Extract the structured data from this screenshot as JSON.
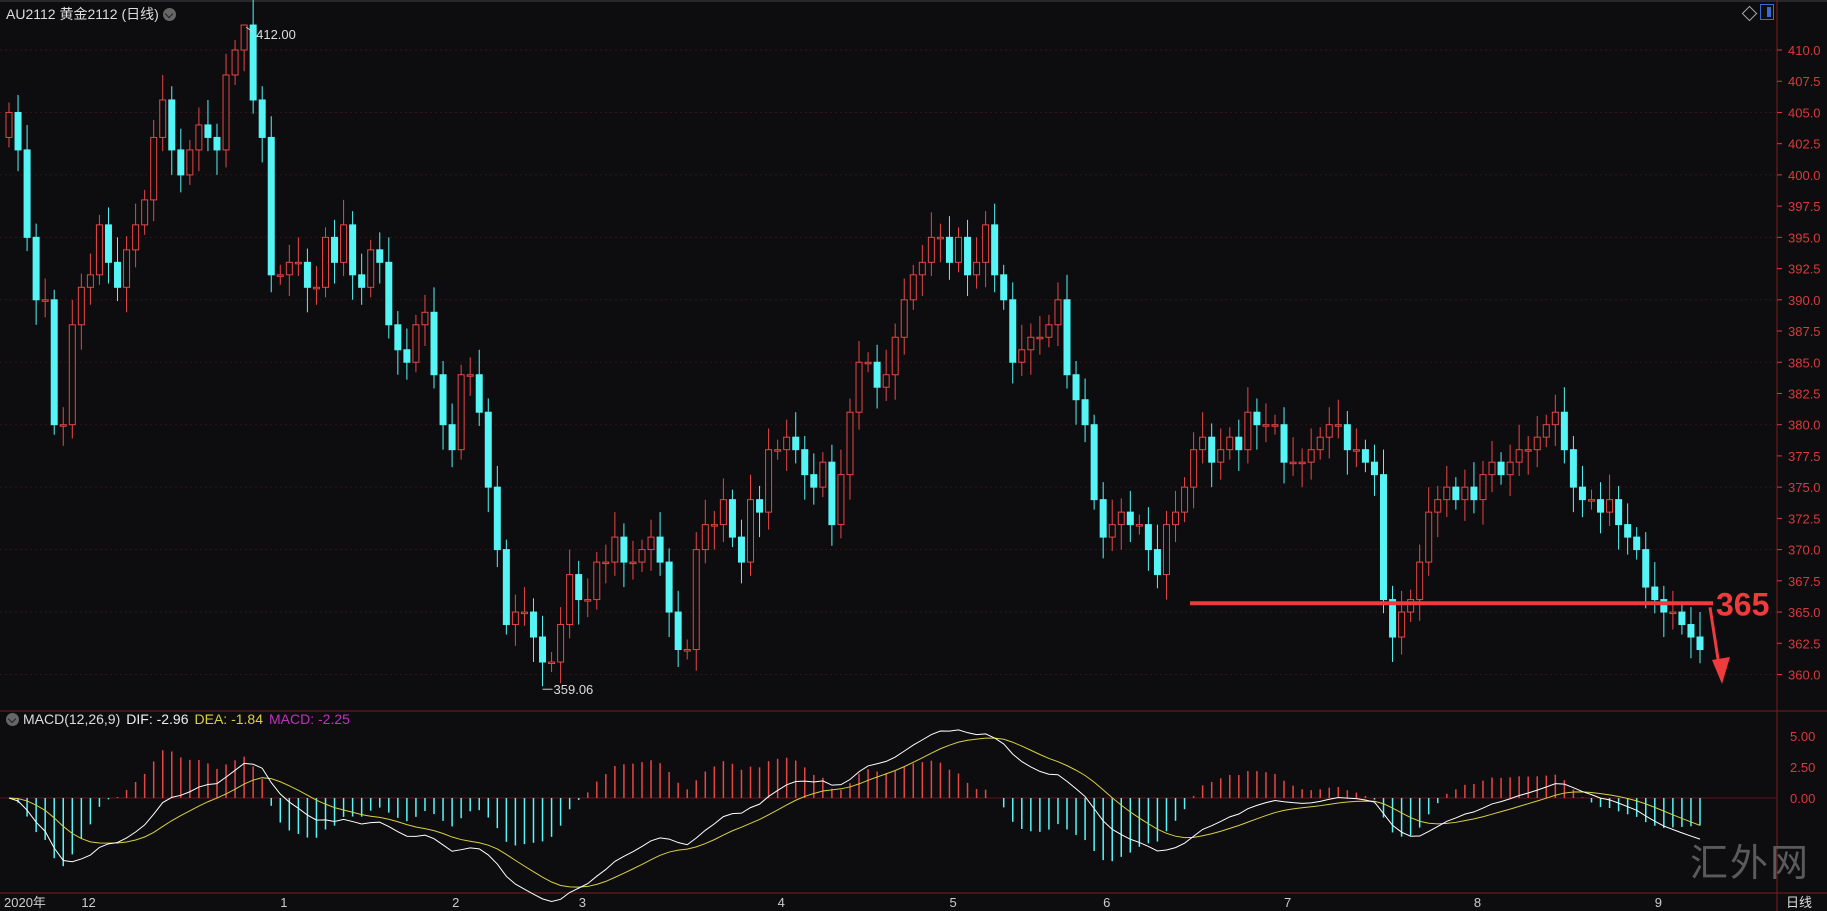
{
  "header": {
    "title": "AU2112 黄金2112 (日线)"
  },
  "macd_header": {
    "label": "MACD(12,26,9)",
    "dif": "DIF: -2.96",
    "dea": "DEA: -1.84",
    "macd": "MACD: -2.25"
  },
  "period_label": "日线",
  "watermark": "汇外网",
  "annotation": {
    "level_text": "365",
    "level": 365.7
  },
  "colors": {
    "up": "#e84545",
    "down": "#55f5f5",
    "axis": "#d83a3a",
    "grid": "#3a1216",
    "dif": "#ffffff",
    "dea": "#d8d040"
  },
  "chart_data": {
    "type": "candlestick",
    "title": "AU2112 黄金2112 (日线)",
    "ylim": [
      358,
      413
    ],
    "yticks": [
      "410.0",
      "407.5",
      "405.0",
      "402.5",
      "400.0",
      "397.5",
      "395.0",
      "392.5",
      "390.0",
      "387.5",
      "385.0",
      "382.5",
      "380.0",
      "377.5",
      "375.0",
      "372.5",
      "370.0",
      "367.5",
      "365.0",
      "362.5",
      "360.0"
    ],
    "macd_ticks": [
      "5.00",
      "2.50",
      "0.00"
    ],
    "xlabels": [
      {
        "label": "2020年",
        "idx": 1
      },
      {
        "label": "12",
        "idx": 8
      },
      {
        "label": "1",
        "idx": 30
      },
      {
        "label": "2",
        "idx": 49
      },
      {
        "label": "3",
        "idx": 63
      },
      {
        "label": "4",
        "idx": 85
      },
      {
        "label": "5",
        "idx": 104
      },
      {
        "label": "6",
        "idx": 121
      },
      {
        "label": "7",
        "idx": 141
      },
      {
        "label": "8",
        "idx": 162
      },
      {
        "label": "9",
        "idx": 182
      }
    ],
    "high_marker": "412.00",
    "low_marker": "359.06",
    "first_open": 403,
    "close": [
      405,
      402,
      395,
      390,
      390,
      380,
      380,
      388,
      391,
      392,
      396,
      393,
      391,
      394,
      396,
      398,
      403,
      406,
      402,
      400,
      402,
      404,
      403,
      402,
      408,
      410,
      412,
      406,
      403,
      392,
      392,
      393,
      393,
      391,
      391,
      395,
      393,
      396,
      392,
      391,
      394,
      393,
      388,
      386,
      385,
      388,
      389,
      384,
      380,
      378,
      384,
      384,
      381,
      375,
      370,
      364,
      365,
      365,
      363,
      361,
      361,
      364,
      368,
      366,
      366,
      369,
      369,
      371,
      369,
      369,
      370,
      371,
      369,
      365,
      362,
      362,
      370,
      372,
      372,
      374,
      371,
      369,
      374,
      373,
      378,
      378,
      379,
      378,
      376,
      375,
      377,
      372,
      376,
      381,
      385,
      385,
      383,
      384,
      387,
      390,
      392,
      393,
      395,
      395,
      393,
      395,
      392,
      393,
      396,
      392,
      390,
      385,
      386,
      387,
      387,
      388,
      390,
      384,
      382,
      380,
      374,
      371,
      372,
      373,
      372,
      372,
      370,
      368,
      372,
      373,
      375,
      378,
      379,
      377,
      378,
      379,
      378,
      381,
      380,
      380,
      380,
      377,
      377,
      377,
      378,
      379,
      380,
      380,
      378,
      378,
      377,
      376,
      366,
      363,
      365,
      366,
      369,
      373,
      374,
      375,
      374,
      375,
      374,
      376,
      377,
      376,
      377,
      378,
      378,
      379,
      380,
      381,
      378,
      375,
      374,
      374,
      373,
      374,
      372,
      371,
      370,
      367,
      366,
      365,
      365,
      364,
      363,
      362
    ]
  }
}
